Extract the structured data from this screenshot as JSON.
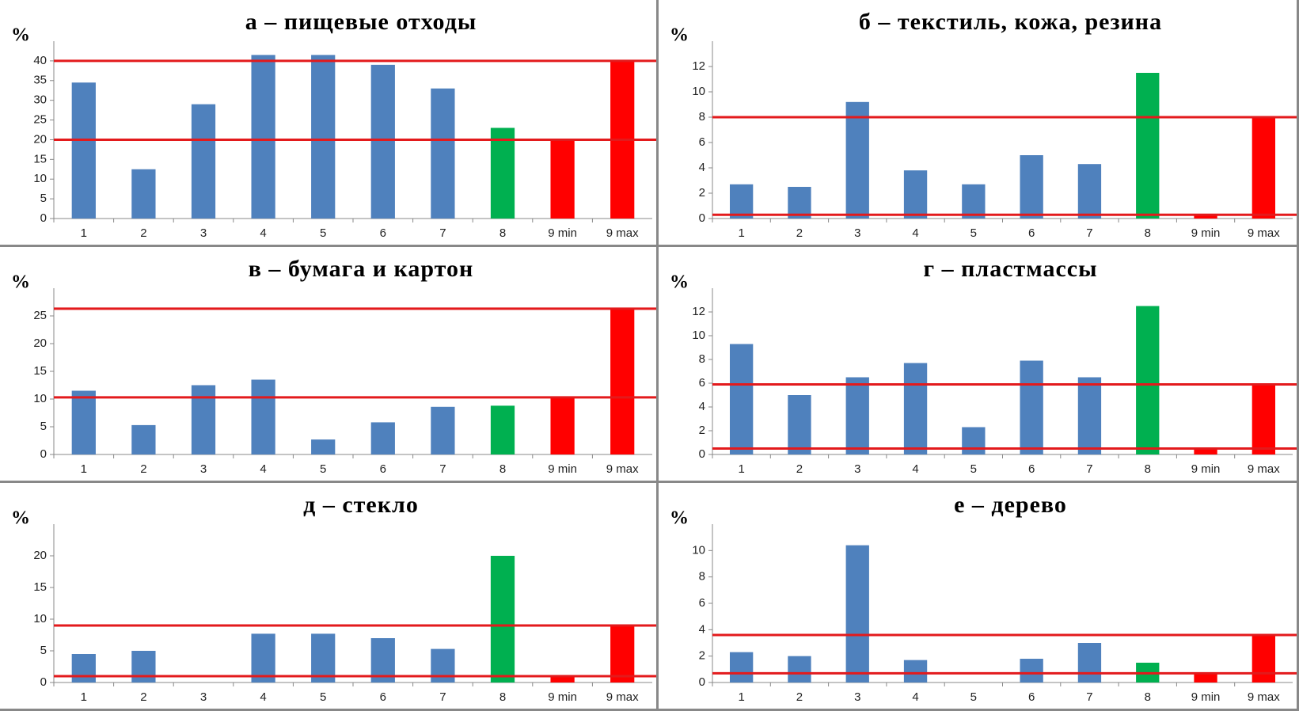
{
  "chart_data": [
    {
      "type": "bar",
      "title": "а – пищевые отходы",
      "ylabel": "%",
      "categories": [
        "1",
        "2",
        "3",
        "4",
        "5",
        "6",
        "7",
        "8",
        "9 min",
        "9 max"
      ],
      "values": [
        34.5,
        12.5,
        29,
        41.5,
        41.5,
        39,
        33,
        23,
        20,
        40
      ],
      "colors": [
        "#4f81bd",
        "#4f81bd",
        "#4f81bd",
        "#4f81bd",
        "#4f81bd",
        "#4f81bd",
        "#4f81bd",
        "#00b050",
        "#ff0000",
        "#ff0000"
      ],
      "ylim": [
        0,
        45
      ],
      "yticks": [
        0,
        5,
        10,
        15,
        20,
        25,
        30,
        35,
        40
      ],
      "reference_lines": [
        20,
        40
      ],
      "reference_color": "#e31a1c"
    },
    {
      "type": "bar",
      "title": "б – текстиль, кожа, резина",
      "ylabel": "%",
      "categories": [
        "1",
        "2",
        "3",
        "4",
        "5",
        "6",
        "7",
        "8",
        "9 min",
        "9 max"
      ],
      "values": [
        2.7,
        2.5,
        9.2,
        3.8,
        2.7,
        5,
        4.3,
        11.5,
        0.3,
        8
      ],
      "colors": [
        "#4f81bd",
        "#4f81bd",
        "#4f81bd",
        "#4f81bd",
        "#4f81bd",
        "#4f81bd",
        "#4f81bd",
        "#00b050",
        "#ff0000",
        "#ff0000"
      ],
      "ylim": [
        0,
        14
      ],
      "yticks": [
        0,
        2,
        4,
        6,
        8,
        10,
        12
      ],
      "reference_lines": [
        0.3,
        8
      ],
      "reference_color": "#e31a1c"
    },
    {
      "type": "bar",
      "title": "в – бумага и картон",
      "ylabel": "%",
      "categories": [
        "1",
        "2",
        "3",
        "4",
        "5",
        "6",
        "7",
        "8",
        "9 min",
        "9 max"
      ],
      "values": [
        11.5,
        5.3,
        12.5,
        13.5,
        2.7,
        5.8,
        8.6,
        8.8,
        10.3,
        26.3
      ],
      "colors": [
        "#4f81bd",
        "#4f81bd",
        "#4f81bd",
        "#4f81bd",
        "#4f81bd",
        "#4f81bd",
        "#4f81bd",
        "#00b050",
        "#ff0000",
        "#ff0000"
      ],
      "ylim": [
        0,
        30
      ],
      "yticks": [
        0,
        5,
        10,
        15,
        20,
        25
      ],
      "reference_lines": [
        10.3,
        26.3
      ],
      "reference_color": "#e31a1c"
    },
    {
      "type": "bar",
      "title": "г – пластмассы",
      "ylabel": "%",
      "categories": [
        "1",
        "2",
        "3",
        "4",
        "5",
        "6",
        "7",
        "8",
        "9 min",
        "9 max"
      ],
      "values": [
        9.3,
        5,
        6.5,
        7.7,
        2.3,
        7.9,
        6.5,
        12.5,
        0.5,
        5.9
      ],
      "colors": [
        "#4f81bd",
        "#4f81bd",
        "#4f81bd",
        "#4f81bd",
        "#4f81bd",
        "#4f81bd",
        "#4f81bd",
        "#00b050",
        "#ff0000",
        "#ff0000"
      ],
      "ylim": [
        0,
        14
      ],
      "yticks": [
        0,
        2,
        4,
        6,
        8,
        10,
        12
      ],
      "reference_lines": [
        0.5,
        5.9
      ],
      "reference_color": "#e31a1c"
    },
    {
      "type": "bar",
      "title": "д – стекло",
      "ylabel": "%",
      "categories": [
        "1",
        "2",
        "3",
        "4",
        "5",
        "6",
        "7",
        "8",
        "9 min",
        "9 max"
      ],
      "values": [
        4.5,
        5,
        0,
        7.7,
        7.7,
        7,
        5.3,
        20,
        1,
        9
      ],
      "colors": [
        "#4f81bd",
        "#4f81bd",
        "#4f81bd",
        "#4f81bd",
        "#4f81bd",
        "#4f81bd",
        "#4f81bd",
        "#00b050",
        "#ff0000",
        "#ff0000"
      ],
      "ylim": [
        0,
        25
      ],
      "yticks": [
        0,
        5,
        10,
        15,
        20
      ],
      "reference_lines": [
        1,
        9
      ],
      "reference_color": "#e31a1c"
    },
    {
      "type": "bar",
      "title": "е – дерево",
      "ylabel": "%",
      "categories": [
        "1",
        "2",
        "3",
        "4",
        "5",
        "6",
        "7",
        "8",
        "9 min",
        "9 max"
      ],
      "values": [
        2.3,
        2,
        10.4,
        1.7,
        0,
        1.8,
        3,
        1.5,
        0.7,
        3.6
      ],
      "colors": [
        "#4f81bd",
        "#4f81bd",
        "#4f81bd",
        "#4f81bd",
        "#4f81bd",
        "#4f81bd",
        "#4f81bd",
        "#00b050",
        "#ff0000",
        "#ff0000"
      ],
      "ylim": [
        0,
        12
      ],
      "yticks": [
        0,
        2,
        4,
        6,
        8,
        10
      ],
      "reference_lines": [
        0.7,
        3.6
      ],
      "reference_color": "#e31a1c"
    }
  ]
}
